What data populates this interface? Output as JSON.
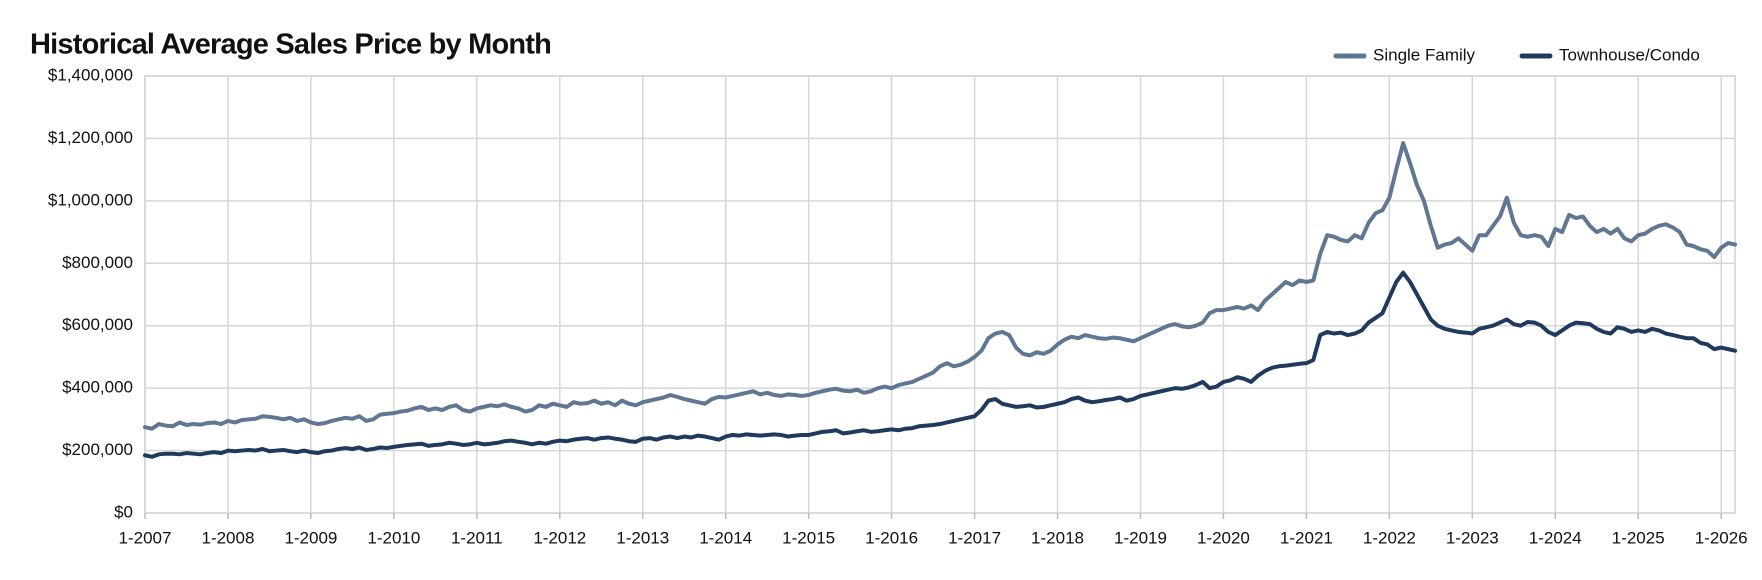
{
  "chart_data": {
    "type": "line",
    "title": "Historical Average Sales Price by Month",
    "categories": [
      "1-2007",
      null,
      null,
      null,
      null,
      null,
      null,
      null,
      null,
      null,
      null,
      null,
      "1-2008",
      null,
      null,
      null,
      null,
      null,
      null,
      null,
      null,
      null,
      null,
      null,
      "1-2009",
      null,
      null,
      null,
      null,
      null,
      null,
      null,
      null,
      null,
      null,
      null,
      "1-2010",
      null,
      null,
      null,
      null,
      null,
      null,
      null,
      null,
      null,
      null,
      null,
      "1-2011",
      null,
      null,
      null,
      null,
      null,
      null,
      null,
      null,
      null,
      null,
      null,
      "1-2012",
      null,
      null,
      null,
      null,
      null,
      null,
      null,
      null,
      null,
      null,
      null,
      "1-2013",
      null,
      null,
      null,
      null,
      null,
      null,
      null,
      null,
      null,
      null,
      null,
      "1-2014",
      null,
      null,
      null,
      null,
      null,
      null,
      null,
      null,
      null,
      null,
      null,
      "1-2015",
      null,
      null,
      null,
      null,
      null,
      null,
      null,
      null,
      null,
      null,
      null,
      "1-2016",
      null,
      null,
      null,
      null,
      null,
      null,
      null,
      null,
      null,
      null,
      null,
      "1-2017",
      null,
      null,
      null,
      null,
      null,
      null,
      null,
      null,
      null,
      null,
      null,
      "1-2018",
      null,
      null,
      null,
      null,
      null,
      null,
      null,
      null,
      null,
      null,
      null,
      "1-2019",
      null,
      null,
      null,
      null,
      null,
      null,
      null,
      null,
      null,
      null,
      null,
      "1-2020",
      null,
      null,
      null,
      null,
      null,
      null,
      null,
      null,
      null,
      null,
      null,
      "1-2021",
      null,
      null,
      null,
      null,
      null,
      null,
      null,
      null,
      null,
      null,
      null,
      "1-2022",
      null,
      null,
      null,
      null,
      null,
      null,
      null,
      null,
      null,
      null,
      null,
      "1-2023",
      null,
      null,
      null,
      null,
      null,
      null,
      null,
      null,
      null,
      null,
      null,
      "1-2024",
      null,
      null,
      null,
      null,
      null,
      null,
      null,
      null,
      null,
      null,
      null,
      "1-2025",
      null,
      null,
      null,
      null,
      null,
      null,
      null,
      null,
      null,
      null,
      null,
      "1-2026",
      null,
      null
    ],
    "series": [
      {
        "name": "Single Family",
        "color": "#5f7793",
        "values": [
          275000,
          270000,
          285000,
          280000,
          278000,
          290000,
          282000,
          285000,
          283000,
          288000,
          290000,
          285000,
          295000,
          290000,
          298000,
          300000,
          302000,
          310000,
          308000,
          305000,
          300000,
          305000,
          295000,
          300000,
          290000,
          285000,
          288000,
          295000,
          300000,
          305000,
          302000,
          310000,
          295000,
          300000,
          315000,
          318000,
          320000,
          325000,
          328000,
          335000,
          340000,
          330000,
          335000,
          330000,
          340000,
          345000,
          330000,
          325000,
          335000,
          340000,
          345000,
          342000,
          348000,
          340000,
          335000,
          325000,
          330000,
          345000,
          340000,
          350000,
          345000,
          340000,
          355000,
          350000,
          352000,
          360000,
          350000,
          355000,
          345000,
          360000,
          350000,
          345000,
          355000,
          360000,
          365000,
          370000,
          378000,
          372000,
          365000,
          360000,
          355000,
          350000,
          365000,
          372000,
          370000,
          375000,
          380000,
          385000,
          390000,
          380000,
          385000,
          378000,
          375000,
          380000,
          378000,
          375000,
          378000,
          385000,
          390000,
          395000,
          398000,
          392000,
          390000,
          395000,
          385000,
          390000,
          400000,
          405000,
          400000,
          410000,
          415000,
          420000,
          430000,
          440000,
          450000,
          470000,
          480000,
          470000,
          475000,
          485000,
          500000,
          520000,
          560000,
          575000,
          580000,
          570000,
          530000,
          510000,
          505000,
          515000,
          510000,
          520000,
          540000,
          555000,
          565000,
          560000,
          570000,
          565000,
          560000,
          558000,
          562000,
          560000,
          555000,
          550000,
          560000,
          570000,
          580000,
          590000,
          600000,
          605000,
          598000,
          595000,
          600000,
          610000,
          640000,
          650000,
          650000,
          655000,
          660000,
          655000,
          665000,
          650000,
          680000,
          700000,
          720000,
          740000,
          730000,
          745000,
          740000,
          745000,
          830000,
          890000,
          885000,
          875000,
          870000,
          890000,
          880000,
          930000,
          960000,
          970000,
          1010000,
          1100000,
          1185000,
          1120000,
          1050000,
          1000000,
          920000,
          850000,
          860000,
          865000,
          880000,
          860000,
          840000,
          890000,
          890000,
          920000,
          950000,
          1010000,
          930000,
          890000,
          885000,
          890000,
          885000,
          855000,
          910000,
          900000,
          955000,
          945000,
          950000,
          920000,
          900000,
          910000,
          895000,
          910000,
          880000,
          870000,
          890000,
          895000,
          910000,
          920000,
          925000,
          915000,
          900000,
          860000,
          855000,
          845000,
          840000,
          820000,
          850000,
          865000,
          860000
        ]
      },
      {
        "name": "Townhouse/Condo",
        "color": "#1f3a5c",
        "values": [
          185000,
          180000,
          188000,
          190000,
          190000,
          188000,
          192000,
          190000,
          188000,
          192000,
          195000,
          192000,
          200000,
          198000,
          200000,
          202000,
          200000,
          205000,
          198000,
          200000,
          202000,
          198000,
          195000,
          200000,
          195000,
          192000,
          198000,
          200000,
          205000,
          208000,
          205000,
          210000,
          202000,
          205000,
          210000,
          208000,
          212000,
          215000,
          218000,
          220000,
          222000,
          215000,
          218000,
          220000,
          225000,
          222000,
          218000,
          220000,
          225000,
          220000,
          222000,
          225000,
          230000,
          232000,
          228000,
          225000,
          220000,
          225000,
          222000,
          228000,
          232000,
          230000,
          235000,
          238000,
          240000,
          235000,
          240000,
          242000,
          238000,
          235000,
          230000,
          228000,
          238000,
          240000,
          235000,
          242000,
          245000,
          240000,
          245000,
          242000,
          248000,
          245000,
          240000,
          235000,
          245000,
          250000,
          248000,
          252000,
          250000,
          248000,
          250000,
          252000,
          250000,
          245000,
          248000,
          250000,
          250000,
          255000,
          260000,
          262000,
          265000,
          255000,
          258000,
          262000,
          265000,
          260000,
          262000,
          265000,
          268000,
          265000,
          270000,
          272000,
          278000,
          280000,
          282000,
          285000,
          290000,
          295000,
          300000,
          305000,
          310000,
          330000,
          360000,
          365000,
          350000,
          345000,
          340000,
          342000,
          345000,
          338000,
          340000,
          345000,
          350000,
          355000,
          365000,
          370000,
          360000,
          355000,
          358000,
          362000,
          365000,
          370000,
          360000,
          365000,
          375000,
          380000,
          385000,
          390000,
          395000,
          400000,
          398000,
          402000,
          410000,
          420000,
          400000,
          405000,
          420000,
          425000,
          435000,
          430000,
          420000,
          440000,
          455000,
          465000,
          470000,
          472000,
          475000,
          478000,
          480000,
          490000,
          570000,
          580000,
          575000,
          578000,
          570000,
          575000,
          585000,
          610000,
          625000,
          640000,
          690000,
          740000,
          770000,
          740000,
          700000,
          660000,
          620000,
          600000,
          590000,
          585000,
          580000,
          578000,
          575000,
          590000,
          595000,
          600000,
          610000,
          620000,
          605000,
          600000,
          612000,
          610000,
          600000,
          580000,
          570000,
          585000,
          600000,
          610000,
          608000,
          605000,
          590000,
          580000,
          575000,
          595000,
          590000,
          580000,
          585000,
          580000,
          590000,
          585000,
          575000,
          570000,
          565000,
          560000,
          560000,
          545000,
          540000,
          525000,
          530000,
          525000,
          520000
        ]
      }
    ],
    "ylim": [
      0,
      1400000
    ],
    "yticks": [
      {
        "value": 0,
        "label": "$0"
      },
      {
        "value": 200000,
        "label": "$200,000"
      },
      {
        "value": 400000,
        "label": "$400,000"
      },
      {
        "value": 600000,
        "label": "$600,000"
      },
      {
        "value": 800000,
        "label": "$800,000"
      },
      {
        "value": 1000000,
        "label": "$1,000,000"
      },
      {
        "value": 1200000,
        "label": "$1,200,000"
      },
      {
        "value": 1400000,
        "label": "$1,400,000"
      }
    ],
    "grid": true,
    "legend": "top-right"
  }
}
